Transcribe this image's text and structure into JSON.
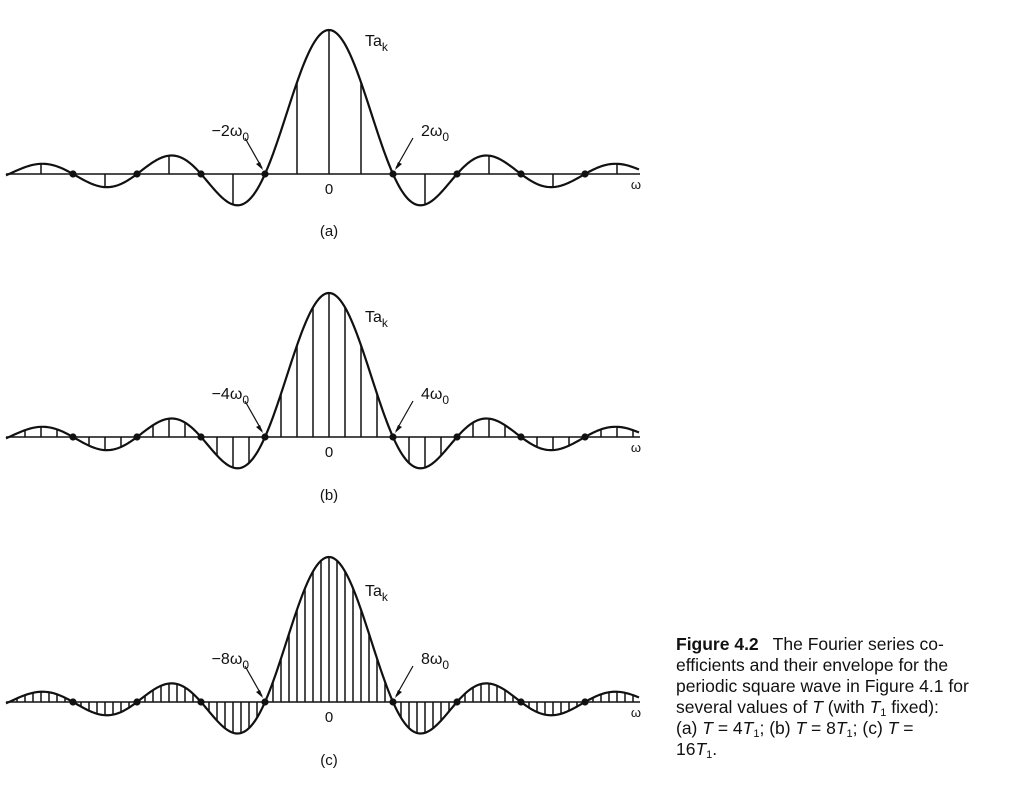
{
  "figure": {
    "panels": [
      {
        "id": "a",
        "label": "(a)",
        "amp_label": "Ta",
        "amp_sub": "k",
        "left_label": "−2ω",
        "right_label": "2ω",
        "mark_sub": "0",
        "origin": "0",
        "axis": "ω",
        "period_ratio": 4
      },
      {
        "id": "b",
        "label": "(b)",
        "amp_label": "Ta",
        "amp_sub": "k",
        "left_label": "−4ω",
        "right_label": "4ω",
        "mark_sub": "0",
        "origin": "0",
        "axis": "ω",
        "period_ratio": 8
      },
      {
        "id": "c",
        "label": "(c)",
        "amp_label": "Ta",
        "amp_sub": "k",
        "left_label": "−8ω",
        "right_label": "8ω",
        "mark_sub": "0",
        "origin": "0",
        "axis": "ω",
        "period_ratio": 16
      }
    ]
  },
  "caption": {
    "label": "Figure 4.2",
    "text": "The Fourier series co- efficients and their envelope for the periodic square wave in Figure 4.1 for several values of T (with T1 fixed): (a) T = 4T1; (b) T = 8T1; (c) T = 16T1."
  }
}
